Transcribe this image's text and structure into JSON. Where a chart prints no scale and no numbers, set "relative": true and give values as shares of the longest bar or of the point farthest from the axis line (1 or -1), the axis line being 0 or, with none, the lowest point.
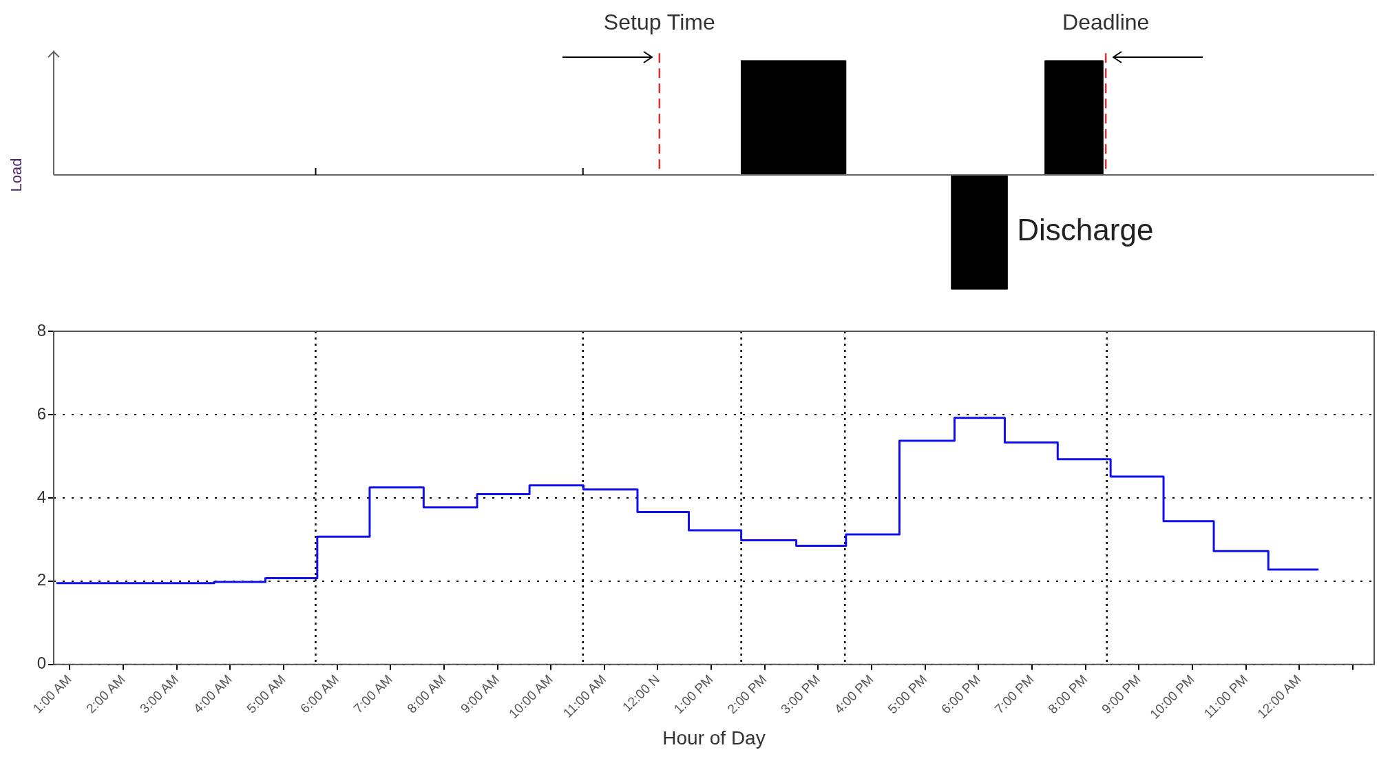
{
  "chart_data": [
    {
      "type": "area",
      "ylabel": "Load",
      "relative": true,
      "color": "#000000",
      "x": [
        13.55,
        15.52,
        17.49,
        18.54,
        19.24,
        20.33
      ],
      "values": [
        1,
        0,
        -1,
        0,
        1,
        0
      ],
      "xlim": [
        0.7,
        25.4
      ],
      "xticks": [
        {
          "value": 5.6,
          "label": null
        },
        {
          "value": 10.6,
          "label": null
        }
      ],
      "tick_labels": false,
      "ref_lines": [
        {
          "axis": "x",
          "value": 12.03,
          "label": "Setup Time",
          "color": "#e03030",
          "line_style": "dashed"
        },
        {
          "axis": "x",
          "value": 20.38,
          "label": "Deadline",
          "color": "#e03030",
          "line_style": "dashed"
        }
      ],
      "annotations": [
        "Discharge"
      ]
    },
    {
      "type": "step",
      "xlabel": "Hour of Day",
      "color": "#1010ee",
      "x": [
        0.75,
        3.7,
        4.66,
        5.63,
        6.61,
        7.62,
        8.62,
        9.6,
        10.61,
        11.62,
        12.58,
        13.56,
        14.59,
        15.52,
        16.52,
        17.55,
        18.49,
        19.48,
        20.47,
        21.46,
        22.4,
        23.42,
        24.36
      ],
      "values": [
        1.95,
        1.98,
        2.07,
        3.07,
        4.25,
        3.77,
        4.09,
        4.3,
        4.2,
        3.66,
        3.22,
        2.98,
        2.85,
        3.12,
        5.37,
        5.92,
        5.33,
        4.93,
        4.51,
        3.44,
        2.72,
        2.28,
        2.28
      ],
      "xlim": [
        0.7,
        25.4
      ],
      "xticks": [
        {
          "value": 1,
          "label": "1:00 AM"
        },
        {
          "value": 2,
          "label": "2:00 AM"
        },
        {
          "value": 3,
          "label": "3:00 AM"
        },
        {
          "value": 4,
          "label": "4:00 AM"
        },
        {
          "value": 5,
          "label": "5:00 AM"
        },
        {
          "value": 6,
          "label": "6:00 AM"
        },
        {
          "value": 7,
          "label": "7:00 AM"
        },
        {
          "value": 8,
          "label": "8:00 AM"
        },
        {
          "value": 9,
          "label": "9:00 AM"
        },
        {
          "value": 10,
          "label": "10:00 AM"
        },
        {
          "value": 11,
          "label": "11:00 AM"
        },
        {
          "value": 12,
          "label": "12:00 N"
        },
        {
          "value": 13,
          "label": "1:00 PM"
        },
        {
          "value": 14,
          "label": "2:00 PM"
        },
        {
          "value": 15,
          "label": "3:00 PM"
        },
        {
          "value": 16,
          "label": "4:00 PM"
        },
        {
          "value": 17,
          "label": "5:00 PM"
        },
        {
          "value": 18,
          "label": "6:00 PM"
        },
        {
          "value": 19,
          "label": "7:00 PM"
        },
        {
          "value": 20,
          "label": "8:00 PM"
        },
        {
          "value": 21,
          "label": "9:00 PM"
        },
        {
          "value": 22,
          "label": "10:00 PM"
        },
        {
          "value": 23,
          "label": "11:00 PM"
        },
        {
          "value": 24,
          "label": "12:00 AM"
        },
        {
          "value": 25,
          "label": null
        }
      ],
      "ylim": [
        0,
        8
      ],
      "yticks": [
        0,
        2,
        4,
        6,
        8
      ],
      "grid": "y",
      "legend": false,
      "ref_lines": [
        {
          "axis": "x",
          "value": 5.6,
          "color": "#000000",
          "line_style": "dotted"
        },
        {
          "axis": "x",
          "value": 10.6,
          "color": "#000000",
          "line_style": "dotted"
        },
        {
          "axis": "x",
          "value": 13.56,
          "color": "#000000",
          "line_style": "dotted"
        },
        {
          "axis": "x",
          "value": 15.5,
          "color": "#000000",
          "line_style": "dotted"
        },
        {
          "axis": "x",
          "value": 20.4,
          "color": "#000000",
          "line_style": "dotted"
        }
      ]
    }
  ]
}
